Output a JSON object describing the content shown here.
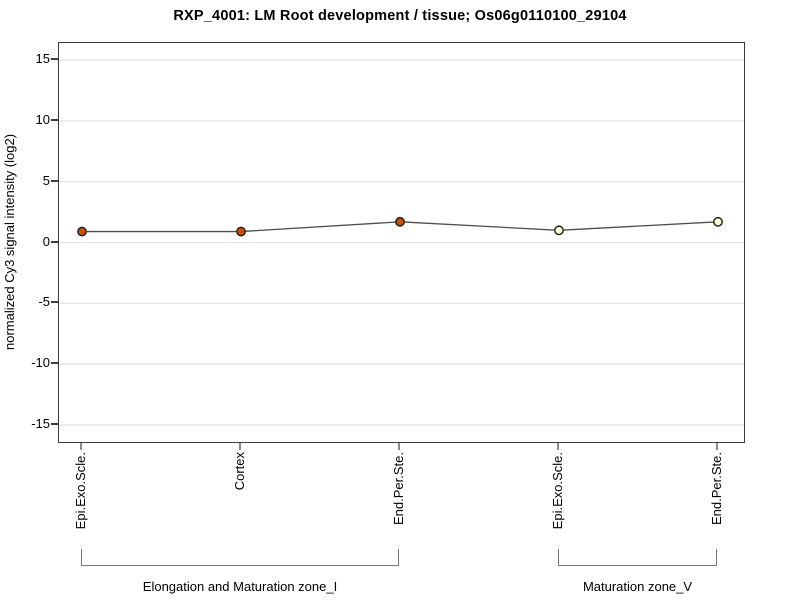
{
  "title": "RXP_4001: LM Root development / tissue; Os06g0110100_29104",
  "chart_data": {
    "type": "line",
    "title": "RXP_4001: LM Root development / tissue; Os06g0110100_29104",
    "ylabel": "normalized Cy3 signal intensity (log2)",
    "xlabel": "",
    "x_categories": [
      "Epi.Exo.Scle.",
      "Cortex",
      "End.Per.Ste.",
      "Epi.Exo.Scle.",
      "End.Per.Ste."
    ],
    "values": [
      0.9,
      0.9,
      1.7,
      1.0,
      1.7
    ],
    "series": [
      {
        "name": "Elongation and Maturation zone_I",
        "categories": [
          "Epi.Exo.Scle.",
          "Cortex",
          "End.Per.Ste."
        ],
        "values": [
          0.9,
          0.9,
          1.7
        ],
        "point_fill": "#c94f03"
      },
      {
        "name": "Maturation zone_V",
        "categories": [
          "Epi.Exo.Scle.",
          "End.Per.Ste."
        ],
        "values": [
          1.0,
          1.7
        ],
        "point_fill": "#ffffcc"
      }
    ],
    "point_fills": [
      "#c94f03",
      "#c94f03",
      "#c94f03",
      "#ffffcc",
      "#ffffcc"
    ],
    "groups": [
      {
        "label": "Elongation and Maturation zone_I",
        "from": 0,
        "to": 2
      },
      {
        "label": "Maturation zone_V",
        "from": 3,
        "to": 4
      }
    ],
    "yticks": [
      15,
      10,
      5,
      0,
      -5,
      -10,
      -15
    ],
    "ylim": [
      -16.4,
      16.4
    ],
    "x_tick_rotation": 90,
    "grid": true,
    "legend": "none",
    "colors": {
      "line": "#4d4d4d",
      "point_stroke": "#1f1f1f",
      "grid": "#e3e3e3",
      "box_border": "#3c3c3c",
      "ytick_mark": "#3c3c3c",
      "xtick_mark": "#8a8a8a",
      "bracket": "#777777",
      "text": "#000000"
    }
  }
}
